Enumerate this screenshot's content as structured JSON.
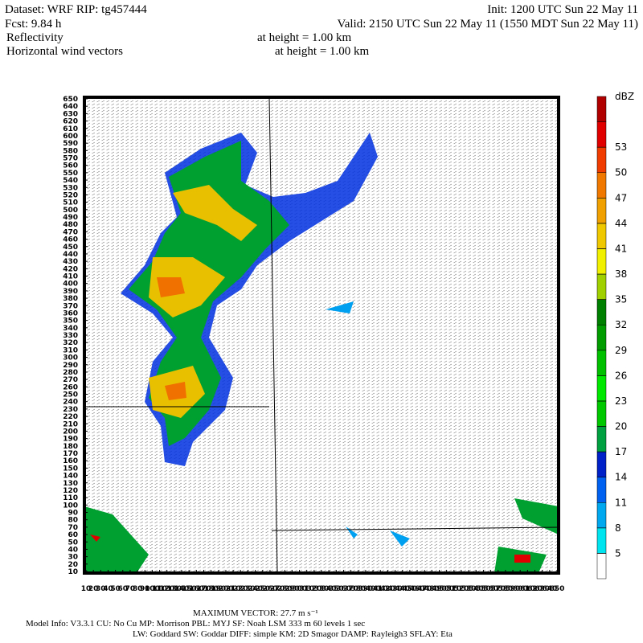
{
  "header": {
    "dataset": "Dataset: WRF  RIP: tg457444",
    "init": "Init: 1200 UTC Sun 22 May 11",
    "fcst": "Fcst:   9.84 h",
    "valid": "Valid: 2150 UTC Sun 22 May 11 (1550 MDT Sun 22 May 11)",
    "field1": "Reflectivity",
    "field1_height": "at height =  1.00 km",
    "field2": "Horizontal wind vectors",
    "field2_height": "at height =  1.00 km"
  },
  "axes": {
    "xlim": [
      10,
      650
    ],
    "ylim": [
      10,
      650
    ],
    "xticks": [
      10,
      20,
      30,
      40,
      50,
      60,
      70,
      80,
      90,
      100,
      110,
      120,
      130,
      140,
      150,
      160,
      170,
      180,
      190,
      200,
      210,
      220,
      230,
      240,
      250,
      260,
      270,
      280,
      290,
      300,
      310,
      320,
      330,
      340,
      350,
      360,
      370,
      380,
      390,
      400,
      410,
      420,
      430,
      440,
      450,
      460,
      470,
      480,
      490,
      500,
      510,
      520,
      530,
      540,
      550,
      560,
      570,
      580,
      590,
      600,
      610,
      620,
      630,
      640,
      650
    ],
    "yticks": [
      10,
      20,
      30,
      40,
      50,
      60,
      70,
      80,
      90,
      100,
      110,
      120,
      130,
      140,
      150,
      160,
      170,
      180,
      190,
      200,
      210,
      220,
      230,
      240,
      250,
      260,
      270,
      280,
      290,
      300,
      310,
      320,
      330,
      340,
      350,
      360,
      370,
      380,
      390,
      400,
      410,
      420,
      430,
      440,
      450,
      460,
      470,
      480,
      490,
      500,
      510,
      520,
      530,
      540,
      550,
      560,
      570,
      580,
      590,
      600,
      610,
      620,
      630,
      640,
      650
    ]
  },
  "colorbar": {
    "unit": "dBZ",
    "levels": [
      5,
      8,
      11,
      14,
      17,
      20,
      23,
      26,
      29,
      32,
      35,
      38,
      41,
      44,
      47,
      50,
      53
    ],
    "colors": [
      "#ffffff",
      "#00e4f0",
      "#00a8f0",
      "#0060f0",
      "#0020c8",
      "#00a040",
      "#00c800",
      "#00e800",
      "#00c000",
      "#009c00",
      "#008000",
      "#a0d000",
      "#f0f000",
      "#f0c800",
      "#f0a000",
      "#f07800",
      "#f03c00",
      "#e00000",
      "#b00000"
    ]
  },
  "footer": {
    "max_vector": "MAXIMUM VECTOR:  27.7 m s⁻¹",
    "line1": "Model Info: V3.3.1    CU: No Cu    MP: Morrison    PBL: MYJ    SF: Noah LSM    333 m    60 levels    1 sec",
    "line2": "LW: Goddard  SW: Goddar  DIFF: simple  KM: 2D Smagor  DAMP: Rayleigh3   SFLAY: Eta"
  }
}
